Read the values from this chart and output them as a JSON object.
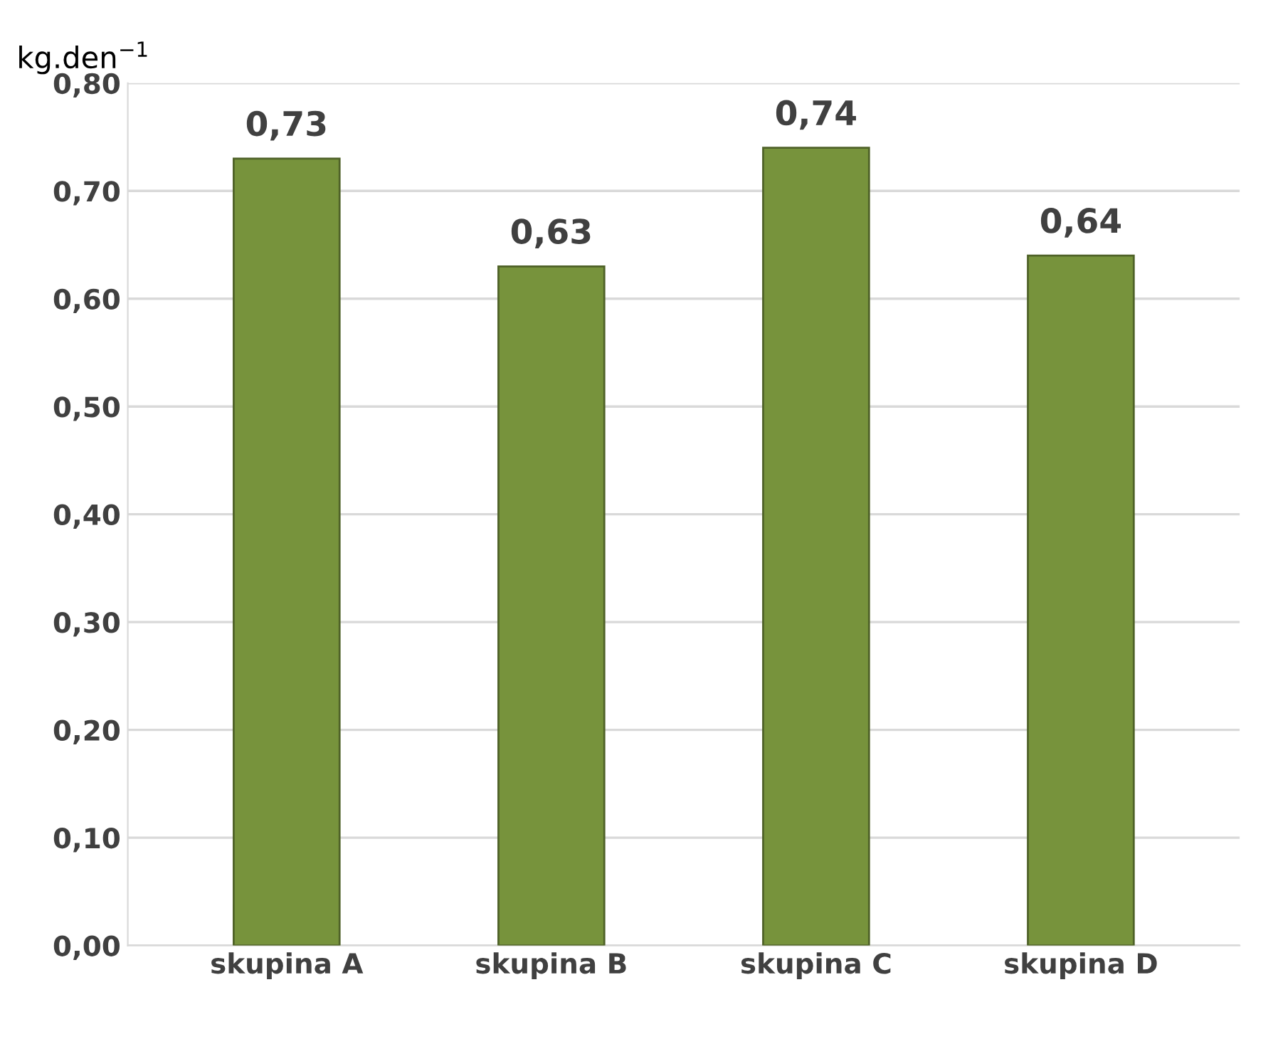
{
  "chart_data": {
    "type": "bar",
    "ylabel": "kg.den$^{−1}$",
    "categories": [
      "skupina A",
      "skupina B",
      "skupina C",
      "skupina D"
    ],
    "values": [
      0.73,
      0.63,
      0.74,
      0.64
    ],
    "value_labels": [
      "0,73",
      "0,63",
      "0,74",
      "0,64"
    ],
    "color": "#77933c",
    "ylim": [
      0,
      0.8
    ],
    "yticks": [
      {
        "value": 0,
        "label": "0,00"
      },
      {
        "value": 0.1,
        "label": "0,10"
      },
      {
        "value": 0.2,
        "label": "0,20"
      },
      {
        "value": 0.3,
        "label": "0,30"
      },
      {
        "value": 0.4,
        "label": "0,40"
      },
      {
        "value": 0.5,
        "label": "0,50"
      },
      {
        "value": 0.6,
        "label": "0,60"
      },
      {
        "value": 0.7,
        "label": "0,70"
      },
      {
        "value": 0.8,
        "label": "0,80"
      }
    ],
    "grid": "y"
  }
}
